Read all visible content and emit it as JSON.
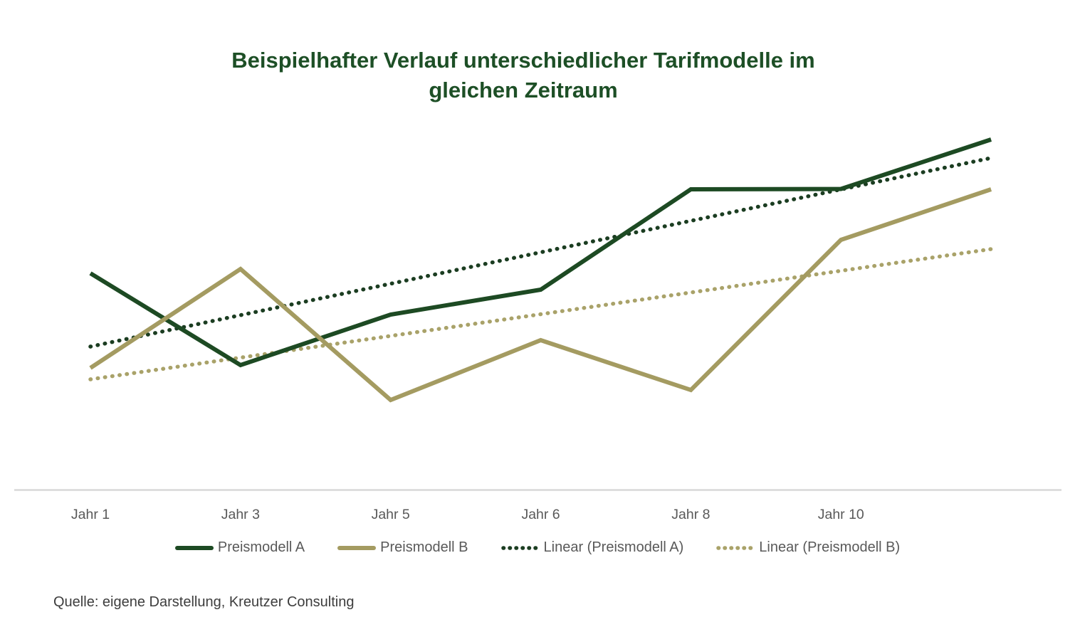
{
  "title": {
    "line1": "Beispielhafter Verlauf unterschiedlicher Tarifmodelle im",
    "line2": "gleichen Zeitraum",
    "color": "#1d4f26"
  },
  "source": {
    "text": "Quelle: eigene Darstellung, Kreutzer Consulting"
  },
  "chart_data": {
    "type": "line",
    "title": "Beispielhafter Verlauf unterschiedlicher Tarifmodelle im gleichen Zeitraum",
    "xlabel": "",
    "ylabel": "",
    "value_scale": "relative 0-100 (chart shows no y-axis or gridlines)",
    "categories": [
      "Jahr 1",
      "Jahr 3",
      "Jahr 5",
      "Jahr 6",
      "Jahr 8",
      "Jahr 10",
      ""
    ],
    "series": [
      {
        "name": "Preismodell A",
        "style": "solid",
        "color": "#1d4a23",
        "values": [
          61.2,
          35.4,
          49.6,
          56.6,
          84.8,
          84.9,
          98.8
        ]
      },
      {
        "name": "Preismodell B",
        "style": "solid",
        "color": "#a49b61",
        "values": [
          34.6,
          62.4,
          25.6,
          42.4,
          28.4,
          70.6,
          84.8
        ]
      }
    ],
    "trendlines": [
      {
        "name": "Linear (Preismodell A)",
        "style": "dotted",
        "color": "#1b3d21",
        "start": 40.6,
        "end": 93.6
      },
      {
        "name": "Linear (Preismodell B)",
        "style": "dotted",
        "color": "#a9a269",
        "start": 31.4,
        "end": 68.0
      }
    ],
    "legend": [
      "Preismodell A",
      "Preismodell B",
      "Linear (Preismodell A)",
      "Linear (Preismodell B)"
    ],
    "legend_position": "bottom",
    "grid": "off",
    "axis_line_color": "#d9d9d9",
    "label_color": "#595959"
  }
}
